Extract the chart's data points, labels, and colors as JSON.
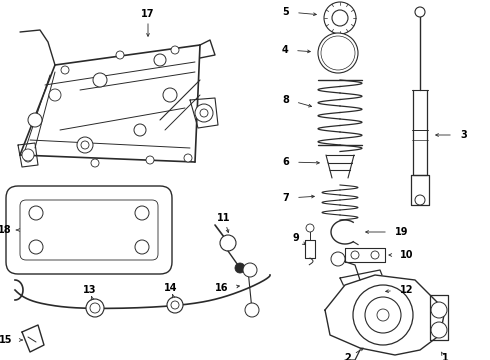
{
  "background_color": "#ffffff",
  "line_color": "#2a2a2a",
  "label_color": "#000000",
  "label_fontsize": 7.0,
  "fig_width": 4.9,
  "fig_height": 3.6,
  "dpi": 100
}
